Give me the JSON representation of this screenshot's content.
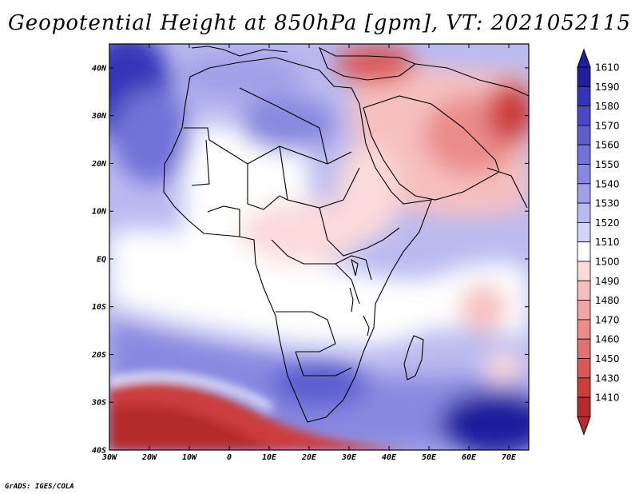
{
  "title": "Geopotential Height at 850hPa [gpm], VT: 2021052115",
  "credit": "GrADS: IGES/COLA",
  "lat_labels": [
    "40N",
    "30N",
    "20N",
    "10N",
    "EQ",
    "10S",
    "20S",
    "30S",
    "40S"
  ],
  "lon_labels": [
    "30W",
    "20W",
    "10W",
    "0",
    "10E",
    "20E",
    "30E",
    "40E",
    "50E",
    "60E",
    "70E"
  ],
  "colorbar": {
    "unit": "gpm",
    "levels": [
      "1610",
      "1590",
      "1580",
      "1570",
      "1560",
      "1550",
      "1540",
      "1530",
      "1520",
      "1510",
      "1500",
      "1490",
      "1480",
      "1470",
      "1460",
      "1450",
      "1430",
      "1410"
    ],
    "colors": [
      "#1f1f9e",
      "#3434b8",
      "#4848c8",
      "#5d5dd0",
      "#7272d8",
      "#8888e0",
      "#a0a0e8",
      "#babaf0",
      "#d4d4f8",
      "#ffffff",
      "#fbdada",
      "#f6c0c0",
      "#f0a6a6",
      "#ea8c8c",
      "#e27272",
      "#d85858",
      "#cc3e3e",
      "#b52a2a"
    ]
  },
  "map": {
    "field": "Geopotential Height at 850hPa",
    "domain": {
      "lon_min": -30,
      "lon_max": 75,
      "lat_min": -40,
      "lat_max": 45
    }
  }
}
